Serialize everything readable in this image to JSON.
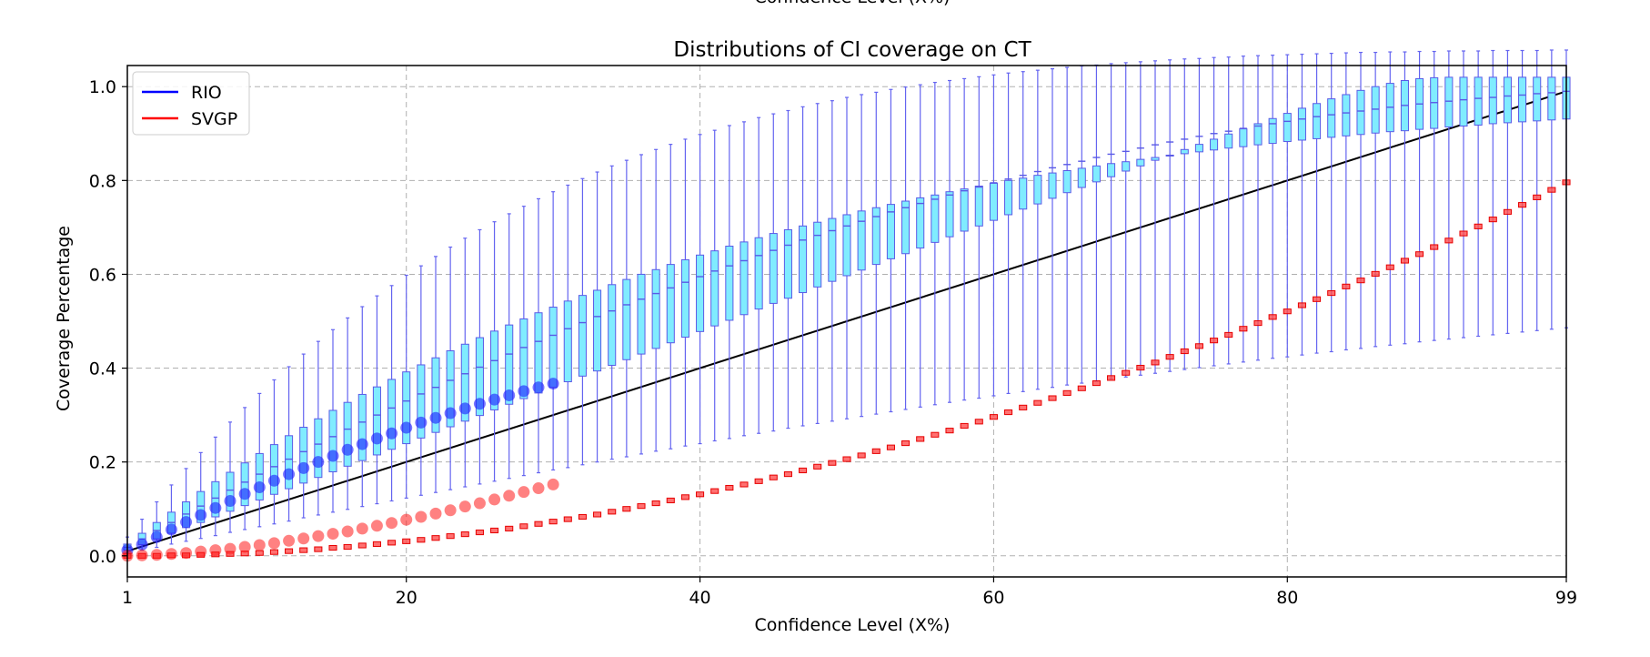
{
  "chart_data": {
    "type": "boxplot",
    "title": "Distributions of CI coverage on CT",
    "top_label_fragment": "Confidence Level (X%)",
    "xlabel": "Confidence Level (X%)",
    "ylabel": "Coverage Percentage",
    "xlim": [
      1,
      99
    ],
    "ylim": [
      -0.045,
      1.045
    ],
    "x_ticks": [
      1,
      20,
      40,
      60,
      80,
      99
    ],
    "y_ticks": [
      0.0,
      0.2,
      0.4,
      0.6,
      0.8,
      1.0
    ],
    "y_tick_labels": [
      "0.0",
      "0.2",
      "0.4",
      "0.6",
      "0.8",
      "1.0"
    ],
    "grid": true,
    "legend_position": "upper-left",
    "reference_line": {
      "name": "y = x / 100",
      "from": [
        1,
        0.01
      ],
      "to": [
        99,
        0.99
      ],
      "color": "#000000"
    },
    "series": [
      {
        "name": "RIO",
        "legend_color": "#0000ff",
        "box_fill": "#80ecff",
        "box_edge": "#5a5ae6",
        "whisker_color": "#6464f0",
        "x": [
          1,
          2,
          3,
          4,
          5,
          6,
          7,
          8,
          9,
          10,
          11,
          12,
          13,
          14,
          15,
          16,
          17,
          18,
          19,
          20,
          21,
          22,
          23,
          24,
          25,
          26,
          27,
          28,
          29,
          30,
          31,
          32,
          33,
          34,
          35,
          36,
          37,
          38,
          39,
          40,
          41,
          42,
          43,
          44,
          45,
          46,
          47,
          48,
          49,
          50,
          51,
          52,
          53,
          54,
          55,
          56,
          57,
          58,
          59,
          60,
          61,
          62,
          63,
          64,
          65,
          66,
          67,
          68,
          69,
          70,
          71,
          72,
          73,
          74,
          75,
          76,
          77,
          78,
          79,
          80,
          81,
          82,
          83,
          84,
          85,
          86,
          87,
          88,
          89,
          90,
          91,
          92,
          93,
          94,
          95,
          96,
          97,
          98,
          99
        ],
        "q1": [
          0.012,
          0.024,
          0.036,
          0.048,
          0.06,
          0.071,
          0.083,
          0.095,
          0.107,
          0.119,
          0.131,
          0.143,
          0.155,
          0.167,
          0.179,
          0.191,
          0.203,
          0.215,
          0.227,
          0.239,
          0.251,
          0.263,
          0.275,
          0.287,
          0.299,
          0.311,
          0.323,
          0.335,
          0.347,
          0.359,
          0.371,
          0.383,
          0.394,
          0.406,
          0.418,
          0.43,
          0.442,
          0.454,
          0.466,
          0.478,
          0.49,
          0.502,
          0.514,
          0.526,
          0.538,
          0.549,
          0.561,
          0.573,
          0.585,
          0.597,
          0.609,
          0.621,
          0.633,
          0.644,
          0.656,
          0.668,
          0.68,
          0.692,
          0.703,
          0.715,
          0.727,
          0.739,
          0.75,
          0.762,
          0.774,
          0.785,
          0.797,
          0.808,
          0.82,
          0.831,
          0.843,
          0.854,
          0.866,
          0.877,
          0.888,
          0.899,
          0.91,
          0.921,
          0.932,
          0.943,
          0.954,
          0.964,
          0.974,
          0.983,
          0.992,
          1.0,
          1.007,
          1.013,
          1.017,
          1.019,
          1.02,
          1.02,
          1.02,
          1.02,
          1.02,
          1.02,
          1.02,
          1.02,
          1.02
        ],
        "median": [
          0.018,
          0.036,
          0.054,
          0.071,
          0.089,
          0.106,
          0.123,
          0.14,
          0.157,
          0.174,
          0.19,
          0.206,
          0.222,
          0.238,
          0.254,
          0.27,
          0.285,
          0.3,
          0.315,
          0.33,
          0.345,
          0.359,
          0.374,
          0.388,
          0.402,
          0.416,
          0.43,
          0.444,
          0.457,
          0.47,
          0.484,
          0.497,
          0.51,
          0.522,
          0.535,
          0.547,
          0.559,
          0.571,
          0.583,
          0.595,
          0.607,
          0.618,
          0.629,
          0.64,
          0.651,
          0.662,
          0.673,
          0.683,
          0.693,
          0.703,
          0.713,
          0.723,
          0.733,
          0.742,
          0.751,
          0.76,
          0.769,
          0.778,
          0.786,
          0.795,
          0.803,
          0.811,
          0.819,
          0.827,
          0.834,
          0.841,
          0.849,
          0.856,
          0.862,
          0.869,
          0.876,
          0.882,
          0.888,
          0.894,
          0.9,
          0.905,
          0.911,
          0.916,
          0.921,
          0.926,
          0.931,
          0.936,
          0.94,
          0.944,
          0.948,
          0.952,
          0.956,
          0.96,
          0.963,
          0.966,
          0.969,
          0.972,
          0.975,
          0.977,
          0.98,
          0.982,
          0.985,
          0.987,
          0.99
        ],
        "q3": [
          0.025,
          0.048,
          0.071,
          0.093,
          0.115,
          0.137,
          0.158,
          0.178,
          0.198,
          0.218,
          0.237,
          0.256,
          0.274,
          0.292,
          0.31,
          0.327,
          0.344,
          0.36,
          0.376,
          0.392,
          0.407,
          0.422,
          0.437,
          0.451,
          0.465,
          0.479,
          0.492,
          0.505,
          0.518,
          0.53,
          0.543,
          0.555,
          0.566,
          0.578,
          0.589,
          0.6,
          0.61,
          0.621,
          0.631,
          0.641,
          0.65,
          0.66,
          0.669,
          0.678,
          0.687,
          0.695,
          0.703,
          0.711,
          0.719,
          0.727,
          0.735,
          0.742,
          0.749,
          0.756,
          0.763,
          0.769,
          0.776,
          0.782,
          0.788,
          0.794,
          0.8,
          0.805,
          0.811,
          0.816,
          0.821,
          0.826,
          0.831,
          0.836,
          0.84,
          0.845,
          0.849,
          0.853,
          0.857,
          0.861,
          0.865,
          0.869,
          0.872,
          0.876,
          0.879,
          0.883,
          0.886,
          0.889,
          0.892,
          0.895,
          0.898,
          0.901,
          0.904,
          0.906,
          0.909,
          0.911,
          0.914,
          0.916,
          0.918,
          0.921,
          0.923,
          0.925,
          0.927,
          0.929,
          0.931
        ],
        "whisker_low": [
          0.006,
          0.012,
          0.018,
          0.025,
          0.031,
          0.037,
          0.043,
          0.05,
          0.056,
          0.062,
          0.068,
          0.074,
          0.081,
          0.087,
          0.093,
          0.099,
          0.105,
          0.111,
          0.117,
          0.123,
          0.129,
          0.135,
          0.141,
          0.147,
          0.153,
          0.159,
          0.165,
          0.171,
          0.177,
          0.183,
          0.188,
          0.194,
          0.2,
          0.206,
          0.211,
          0.217,
          0.223,
          0.228,
          0.234,
          0.239,
          0.245,
          0.25,
          0.256,
          0.261,
          0.266,
          0.272,
          0.277,
          0.282,
          0.287,
          0.292,
          0.297,
          0.302,
          0.307,
          0.312,
          0.317,
          0.322,
          0.327,
          0.332,
          0.336,
          0.341,
          0.346,
          0.35,
          0.355,
          0.359,
          0.364,
          0.368,
          0.372,
          0.377,
          0.381,
          0.385,
          0.389,
          0.393,
          0.397,
          0.401,
          0.405,
          0.409,
          0.413,
          0.417,
          0.421,
          0.424,
          0.428,
          0.432,
          0.435,
          0.439,
          0.442,
          0.446,
          0.449,
          0.452,
          0.456,
          0.459,
          0.462,
          0.465,
          0.468,
          0.471,
          0.474,
          0.477,
          0.48,
          0.483,
          0.486
        ],
        "whisker_high": [
          0.04,
          0.078,
          0.115,
          0.151,
          0.186,
          0.22,
          0.253,
          0.285,
          0.316,
          0.346,
          0.375,
          0.403,
          0.43,
          0.457,
          0.482,
          0.507,
          0.531,
          0.554,
          0.576,
          0.598,
          0.618,
          0.638,
          0.658,
          0.677,
          0.695,
          0.712,
          0.729,
          0.745,
          0.761,
          0.776,
          0.79,
          0.804,
          0.818,
          0.831,
          0.843,
          0.855,
          0.866,
          0.877,
          0.888,
          0.898,
          0.907,
          0.917,
          0.925,
          0.934,
          0.942,
          0.949,
          0.957,
          0.964,
          0.97,
          0.977,
          0.983,
          0.988,
          0.994,
          0.999,
          1.004,
          1.009,
          1.013,
          1.017,
          1.021,
          1.025,
          1.029,
          1.032,
          1.035,
          1.038,
          1.041,
          1.044,
          1.046,
          1.049,
          1.051,
          1.053,
          1.055,
          1.057,
          1.059,
          1.06,
          1.062,
          1.063,
          1.065,
          1.066,
          1.067,
          1.068,
          1.069,
          1.07,
          1.071,
          1.072,
          1.073,
          1.073,
          1.074,
          1.074,
          1.075,
          1.075,
          1.076,
          1.076,
          1.076,
          1.077,
          1.077,
          1.077,
          1.077,
          1.078,
          1.078
        ],
        "outliers": [
          [
            1,
            0.012
          ],
          [
            2,
            0.024
          ],
          [
            3,
            0.04
          ],
          [
            4,
            0.056
          ],
          [
            5,
            0.072
          ],
          [
            6,
            0.087
          ],
          [
            7,
            0.102
          ],
          [
            8,
            0.117
          ],
          [
            9,
            0.132
          ],
          [
            10,
            0.146
          ],
          [
            11,
            0.16
          ],
          [
            12,
            0.174
          ],
          [
            13,
            0.187
          ],
          [
            14,
            0.2
          ],
          [
            15,
            0.213
          ],
          [
            16,
            0.226
          ],
          [
            17,
            0.238
          ],
          [
            18,
            0.25
          ],
          [
            19,
            0.261
          ],
          [
            20,
            0.273
          ],
          [
            21,
            0.284
          ],
          [
            22,
            0.294
          ],
          [
            23,
            0.304
          ],
          [
            24,
            0.314
          ],
          [
            25,
            0.324
          ],
          [
            26,
            0.333
          ],
          [
            27,
            0.342
          ],
          [
            28,
            0.351
          ],
          [
            29,
            0.359
          ],
          [
            30,
            0.367
          ]
        ]
      },
      {
        "name": "SVGP",
        "legend_color": "#ff0000",
        "box_fill": "#ff4d4d",
        "box_edge": "#e60000",
        "whisker_color": "#ff3333",
        "x": [
          1,
          2,
          3,
          4,
          5,
          6,
          7,
          8,
          9,
          10,
          11,
          12,
          13,
          14,
          15,
          16,
          17,
          18,
          19,
          20,
          21,
          22,
          23,
          24,
          25,
          26,
          27,
          28,
          29,
          30,
          31,
          32,
          33,
          34,
          35,
          36,
          37,
          38,
          39,
          40,
          41,
          42,
          43,
          44,
          45,
          46,
          47,
          48,
          49,
          50,
          51,
          52,
          53,
          54,
          55,
          56,
          57,
          58,
          59,
          60,
          61,
          62,
          63,
          64,
          65,
          66,
          67,
          68,
          69,
          70,
          71,
          72,
          73,
          74,
          75,
          76,
          77,
          78,
          79,
          80,
          81,
          82,
          83,
          84,
          85,
          86,
          87,
          88,
          89,
          90,
          91,
          92,
          93,
          94,
          95,
          96,
          97,
          98,
          99
        ],
        "median": [
          0.0,
          0.0,
          0.0,
          0.001,
          0.001,
          0.002,
          0.003,
          0.004,
          0.005,
          0.006,
          0.008,
          0.01,
          0.012,
          0.014,
          0.017,
          0.019,
          0.022,
          0.025,
          0.028,
          0.031,
          0.034,
          0.038,
          0.042,
          0.046,
          0.05,
          0.054,
          0.058,
          0.063,
          0.068,
          0.073,
          0.078,
          0.083,
          0.088,
          0.094,
          0.1,
          0.106,
          0.112,
          0.118,
          0.125,
          0.131,
          0.138,
          0.145,
          0.152,
          0.159,
          0.167,
          0.174,
          0.182,
          0.19,
          0.198,
          0.206,
          0.214,
          0.223,
          0.231,
          0.24,
          0.249,
          0.258,
          0.267,
          0.277,
          0.286,
          0.296,
          0.306,
          0.316,
          0.326,
          0.336,
          0.347,
          0.357,
          0.368,
          0.379,
          0.39,
          0.401,
          0.412,
          0.424,
          0.436,
          0.447,
          0.459,
          0.471,
          0.484,
          0.496,
          0.509,
          0.521,
          0.534,
          0.547,
          0.56,
          0.574,
          0.587,
          0.601,
          0.615,
          0.629,
          0.643,
          0.658,
          0.672,
          0.687,
          0.702,
          0.717,
          0.733,
          0.748,
          0.764,
          0.78,
          0.796
        ],
        "half_width": 0.005,
        "outliers": [
          [
            1,
            0.0
          ],
          [
            2,
            0.001
          ],
          [
            3,
            0.002
          ],
          [
            4,
            0.004
          ],
          [
            5,
            0.006
          ],
          [
            6,
            0.009
          ],
          [
            7,
            0.012
          ],
          [
            8,
            0.015
          ],
          [
            9,
            0.019
          ],
          [
            10,
            0.023
          ],
          [
            11,
            0.027
          ],
          [
            12,
            0.032
          ],
          [
            13,
            0.037
          ],
          [
            14,
            0.042
          ],
          [
            15,
            0.047
          ],
          [
            16,
            0.052
          ],
          [
            17,
            0.058
          ],
          [
            18,
            0.064
          ],
          [
            19,
            0.07
          ],
          [
            20,
            0.077
          ],
          [
            21,
            0.083
          ],
          [
            22,
            0.09
          ],
          [
            23,
            0.097
          ],
          [
            24,
            0.105
          ],
          [
            25,
            0.112
          ],
          [
            26,
            0.12
          ],
          [
            27,
            0.128
          ],
          [
            28,
            0.136
          ],
          [
            29,
            0.144
          ],
          [
            30,
            0.152
          ]
        ]
      }
    ]
  }
}
